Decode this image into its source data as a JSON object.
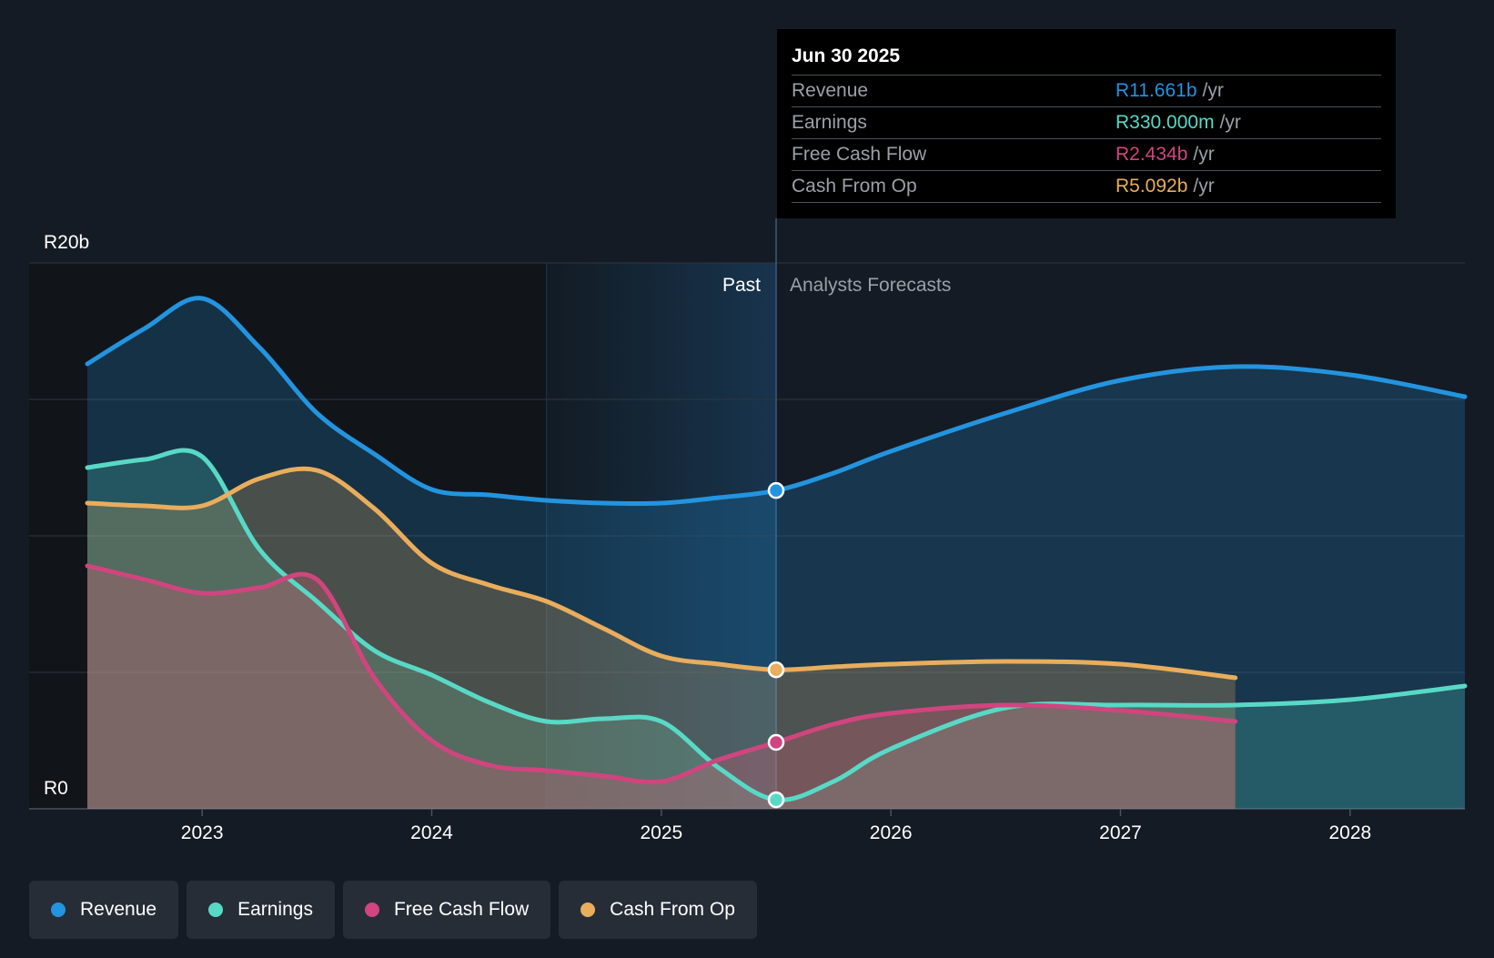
{
  "chart_data": {
    "type": "area",
    "currency_prefix": "R",
    "y_axis_labels": [
      "R20b",
      "R0"
    ],
    "ylim": [
      0,
      20
    ],
    "y_unit": "billions",
    "x_tick_labels": [
      "2023",
      "2024",
      "2025",
      "2026",
      "2027",
      "2028"
    ],
    "x_range": [
      2022.5,
      2028.5
    ],
    "past_label": "Past",
    "forecast_label": "Analysts Forecasts",
    "divider_x": 2025.5,
    "highlight_start_x": 2024.5,
    "series": [
      {
        "name": "Revenue",
        "color": "#2394df",
        "points": [
          [
            2022.5,
            16.3
          ],
          [
            2022.75,
            17.6
          ],
          [
            2023.0,
            18.7
          ],
          [
            2023.25,
            16.9
          ],
          [
            2023.5,
            14.5
          ],
          [
            2023.75,
            13.0
          ],
          [
            2024.0,
            11.7
          ],
          [
            2024.25,
            11.5
          ],
          [
            2024.5,
            11.3
          ],
          [
            2024.75,
            11.2
          ],
          [
            2025.0,
            11.2
          ],
          [
            2025.25,
            11.4
          ],
          [
            2025.5,
            11.661
          ],
          [
            2025.75,
            12.3
          ],
          [
            2026.0,
            13.1
          ],
          [
            2026.5,
            14.5
          ],
          [
            2027.0,
            15.7
          ],
          [
            2027.5,
            16.2
          ],
          [
            2028.0,
            15.9
          ],
          [
            2028.5,
            15.1
          ]
        ]
      },
      {
        "name": "Earnings",
        "color": "#58d9c6",
        "points": [
          [
            2022.5,
            12.5
          ],
          [
            2022.75,
            12.8
          ],
          [
            2023.0,
            12.9
          ],
          [
            2023.25,
            9.5
          ],
          [
            2023.5,
            7.6
          ],
          [
            2023.75,
            5.8
          ],
          [
            2024.0,
            4.9
          ],
          [
            2024.25,
            3.9
          ],
          [
            2024.5,
            3.2
          ],
          [
            2024.75,
            3.3
          ],
          [
            2025.0,
            3.2
          ],
          [
            2025.25,
            1.5
          ],
          [
            2025.5,
            0.33
          ],
          [
            2025.75,
            1.0
          ],
          [
            2026.0,
            2.2
          ],
          [
            2026.5,
            3.7
          ],
          [
            2027.0,
            3.8
          ],
          [
            2027.5,
            3.8
          ],
          [
            2028.0,
            4.0
          ],
          [
            2028.5,
            4.5
          ]
        ]
      },
      {
        "name": "Free Cash Flow",
        "color": "#d0457f",
        "points": [
          [
            2022.5,
            8.9
          ],
          [
            2022.75,
            8.4
          ],
          [
            2023.0,
            7.9
          ],
          [
            2023.25,
            8.1
          ],
          [
            2023.5,
            8.4
          ],
          [
            2023.75,
            4.8
          ],
          [
            2024.0,
            2.5
          ],
          [
            2024.25,
            1.6
          ],
          [
            2024.5,
            1.4
          ],
          [
            2024.75,
            1.2
          ],
          [
            2025.0,
            1.0
          ],
          [
            2025.25,
            1.8
          ],
          [
            2025.5,
            2.434
          ],
          [
            2025.75,
            3.1
          ],
          [
            2026.0,
            3.5
          ],
          [
            2026.5,
            3.8
          ],
          [
            2027.0,
            3.6
          ],
          [
            2027.5,
            3.2
          ]
        ]
      },
      {
        "name": "Cash From Op",
        "color": "#e9ad5c",
        "points": [
          [
            2022.5,
            11.2
          ],
          [
            2022.75,
            11.1
          ],
          [
            2023.0,
            11.1
          ],
          [
            2023.25,
            12.1
          ],
          [
            2023.5,
            12.4
          ],
          [
            2023.75,
            11.0
          ],
          [
            2024.0,
            9.0
          ],
          [
            2024.25,
            8.2
          ],
          [
            2024.5,
            7.6
          ],
          [
            2024.75,
            6.6
          ],
          [
            2025.0,
            5.6
          ],
          [
            2025.25,
            5.3
          ],
          [
            2025.5,
            5.092
          ],
          [
            2025.75,
            5.2
          ],
          [
            2026.0,
            5.3
          ],
          [
            2026.5,
            5.4
          ],
          [
            2027.0,
            5.3
          ],
          [
            2027.5,
            4.8
          ]
        ]
      }
    ]
  },
  "tooltip": {
    "date": "Jun 30 2025",
    "rows": [
      {
        "label": "Revenue",
        "value": "R11.661b",
        "unit": "/yr",
        "color": "#2394df"
      },
      {
        "label": "Earnings",
        "value": "R330.000m",
        "unit": "/yr",
        "color": "#58d9c6"
      },
      {
        "label": "Free Cash Flow",
        "value": "R2.434b",
        "unit": "/yr",
        "color": "#d0457f"
      },
      {
        "label": "Cash From Op",
        "value": "R5.092b",
        "unit": "/yr",
        "color": "#e9ad5c"
      }
    ]
  },
  "legend": [
    {
      "label": "Revenue",
      "color": "#2394df"
    },
    {
      "label": "Earnings",
      "color": "#58d9c6"
    },
    {
      "label": "Free Cash Flow",
      "color": "#d0457f"
    },
    {
      "label": "Cash From Op",
      "color": "#e9ad5c"
    }
  ],
  "colors": {
    "background": "#151b24",
    "past_shade": "#111419",
    "highlight_shade": "#1a3f5e",
    "gridline": "#2f3640",
    "axis_text": "#ffffff",
    "muted_text": "#9aa0a8"
  }
}
